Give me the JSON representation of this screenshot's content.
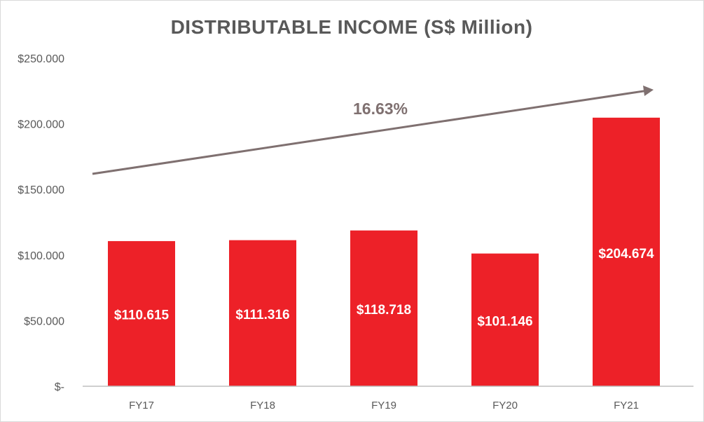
{
  "chart_data": {
    "type": "bar",
    "title": "DISTRIBUTABLE INCOME (S$ Million)",
    "categories": [
      "FY17",
      "FY18",
      "FY19",
      "FY20",
      "FY21"
    ],
    "values": [
      110.615,
      111.316,
      118.718,
      101.146,
      204.674
    ],
    "data_labels": [
      "$110.615",
      "$111.316",
      "$118.718",
      "$101.146",
      "$204.674"
    ],
    "ylim": [
      0,
      250
    ],
    "yticks": [
      0,
      50,
      100,
      150,
      200,
      250
    ],
    "ytick_labels": [
      "$-",
      "$50.000",
      "$100.000",
      "$150.000",
      "$200.000",
      "$250.000"
    ],
    "xlabel": "",
    "ylabel": "",
    "grid": false,
    "annotation": {
      "text": "16.63%",
      "type": "trend-arrow"
    },
    "colors": {
      "bar": "#ED2128",
      "arrow": "#7F7070",
      "text": "#595959",
      "title": "#595959"
    }
  }
}
